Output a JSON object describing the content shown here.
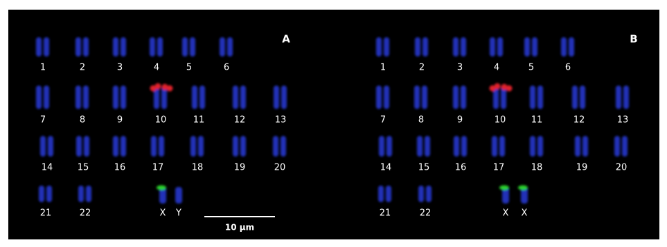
{
  "panels": [
    {
      "label": "A",
      "chromosomes": [
        "1",
        "2",
        "3",
        "4",
        "5",
        "6",
        "7",
        "8",
        "9",
        "10",
        "11",
        "12",
        "13",
        "14",
        "15",
        "16",
        "17",
        "18",
        "19",
        "20",
        "21",
        "22",
        "X",
        "Y"
      ]
    },
    {
      "label": "B",
      "chromosomes": [
        "1",
        "2",
        "3",
        "4",
        "5",
        "6",
        "7",
        "8",
        "9",
        "10",
        "11",
        "12",
        "13",
        "14",
        "15",
        "16",
        "17",
        "18",
        "19",
        "20",
        "21",
        "22",
        "X",
        "X"
      ]
    }
  ],
  "scale_bar": "10 µm"
}
